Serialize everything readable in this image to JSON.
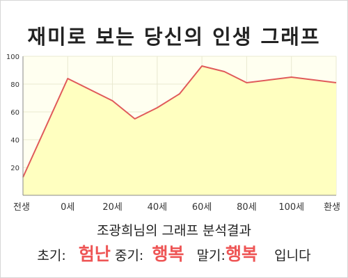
{
  "chart_data": {
    "type": "area",
    "title": "재미로 보는 당신의 인생 그래프",
    "xlabel": "",
    "ylabel": "",
    "x_tick_labels": [
      "전생",
      "0세",
      "20세",
      "40세",
      "60세",
      "80세",
      "100세",
      "환생"
    ],
    "y_ticks": [
      20,
      40,
      60,
      80,
      100
    ],
    "ylim": [
      0,
      100
    ],
    "grid": true,
    "series": [
      {
        "values": [
          13,
          84,
          68,
          55,
          63,
          73,
          93,
          89,
          81,
          83,
          85,
          83,
          81
        ]
      }
    ],
    "x_positions": [
      0,
      1,
      2,
      2.5,
      3,
      3.5,
      4,
      4.5,
      5,
      5.5,
      6,
      6.5,
      7
    ],
    "colors": {
      "line": "#e05a5a",
      "fill": "#ffffc0",
      "plot_bg": "#fffff0",
      "grid": "#e8e8d0"
    }
  },
  "result": {
    "heading": "조광희님의 그래프 분석결과",
    "early_label": "초기:",
    "early_value": "험난",
    "mid_label": "중기:",
    "mid_value": "행복",
    "late_label": "말기:",
    "late_value": "행복",
    "suffix": "입니다"
  }
}
